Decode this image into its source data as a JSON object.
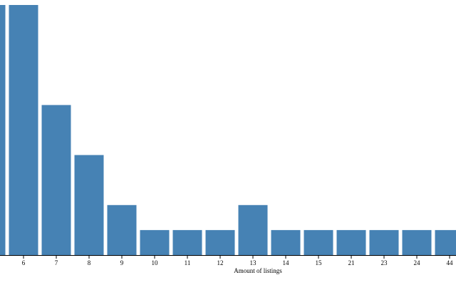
{
  "chart_data": {
    "type": "bar",
    "x_label": "Amount of listings",
    "categories": [
      null,
      "6",
      "7",
      "8",
      "9",
      "10",
      "11",
      "12",
      "13",
      "14",
      "15",
      "21",
      "23",
      "24",
      "44"
    ],
    "values": [
      10,
      10,
      6,
      4,
      2,
      1,
      1,
      1,
      2,
      1,
      1,
      1,
      1,
      1,
      1
    ],
    "color": "#4682b4"
  }
}
